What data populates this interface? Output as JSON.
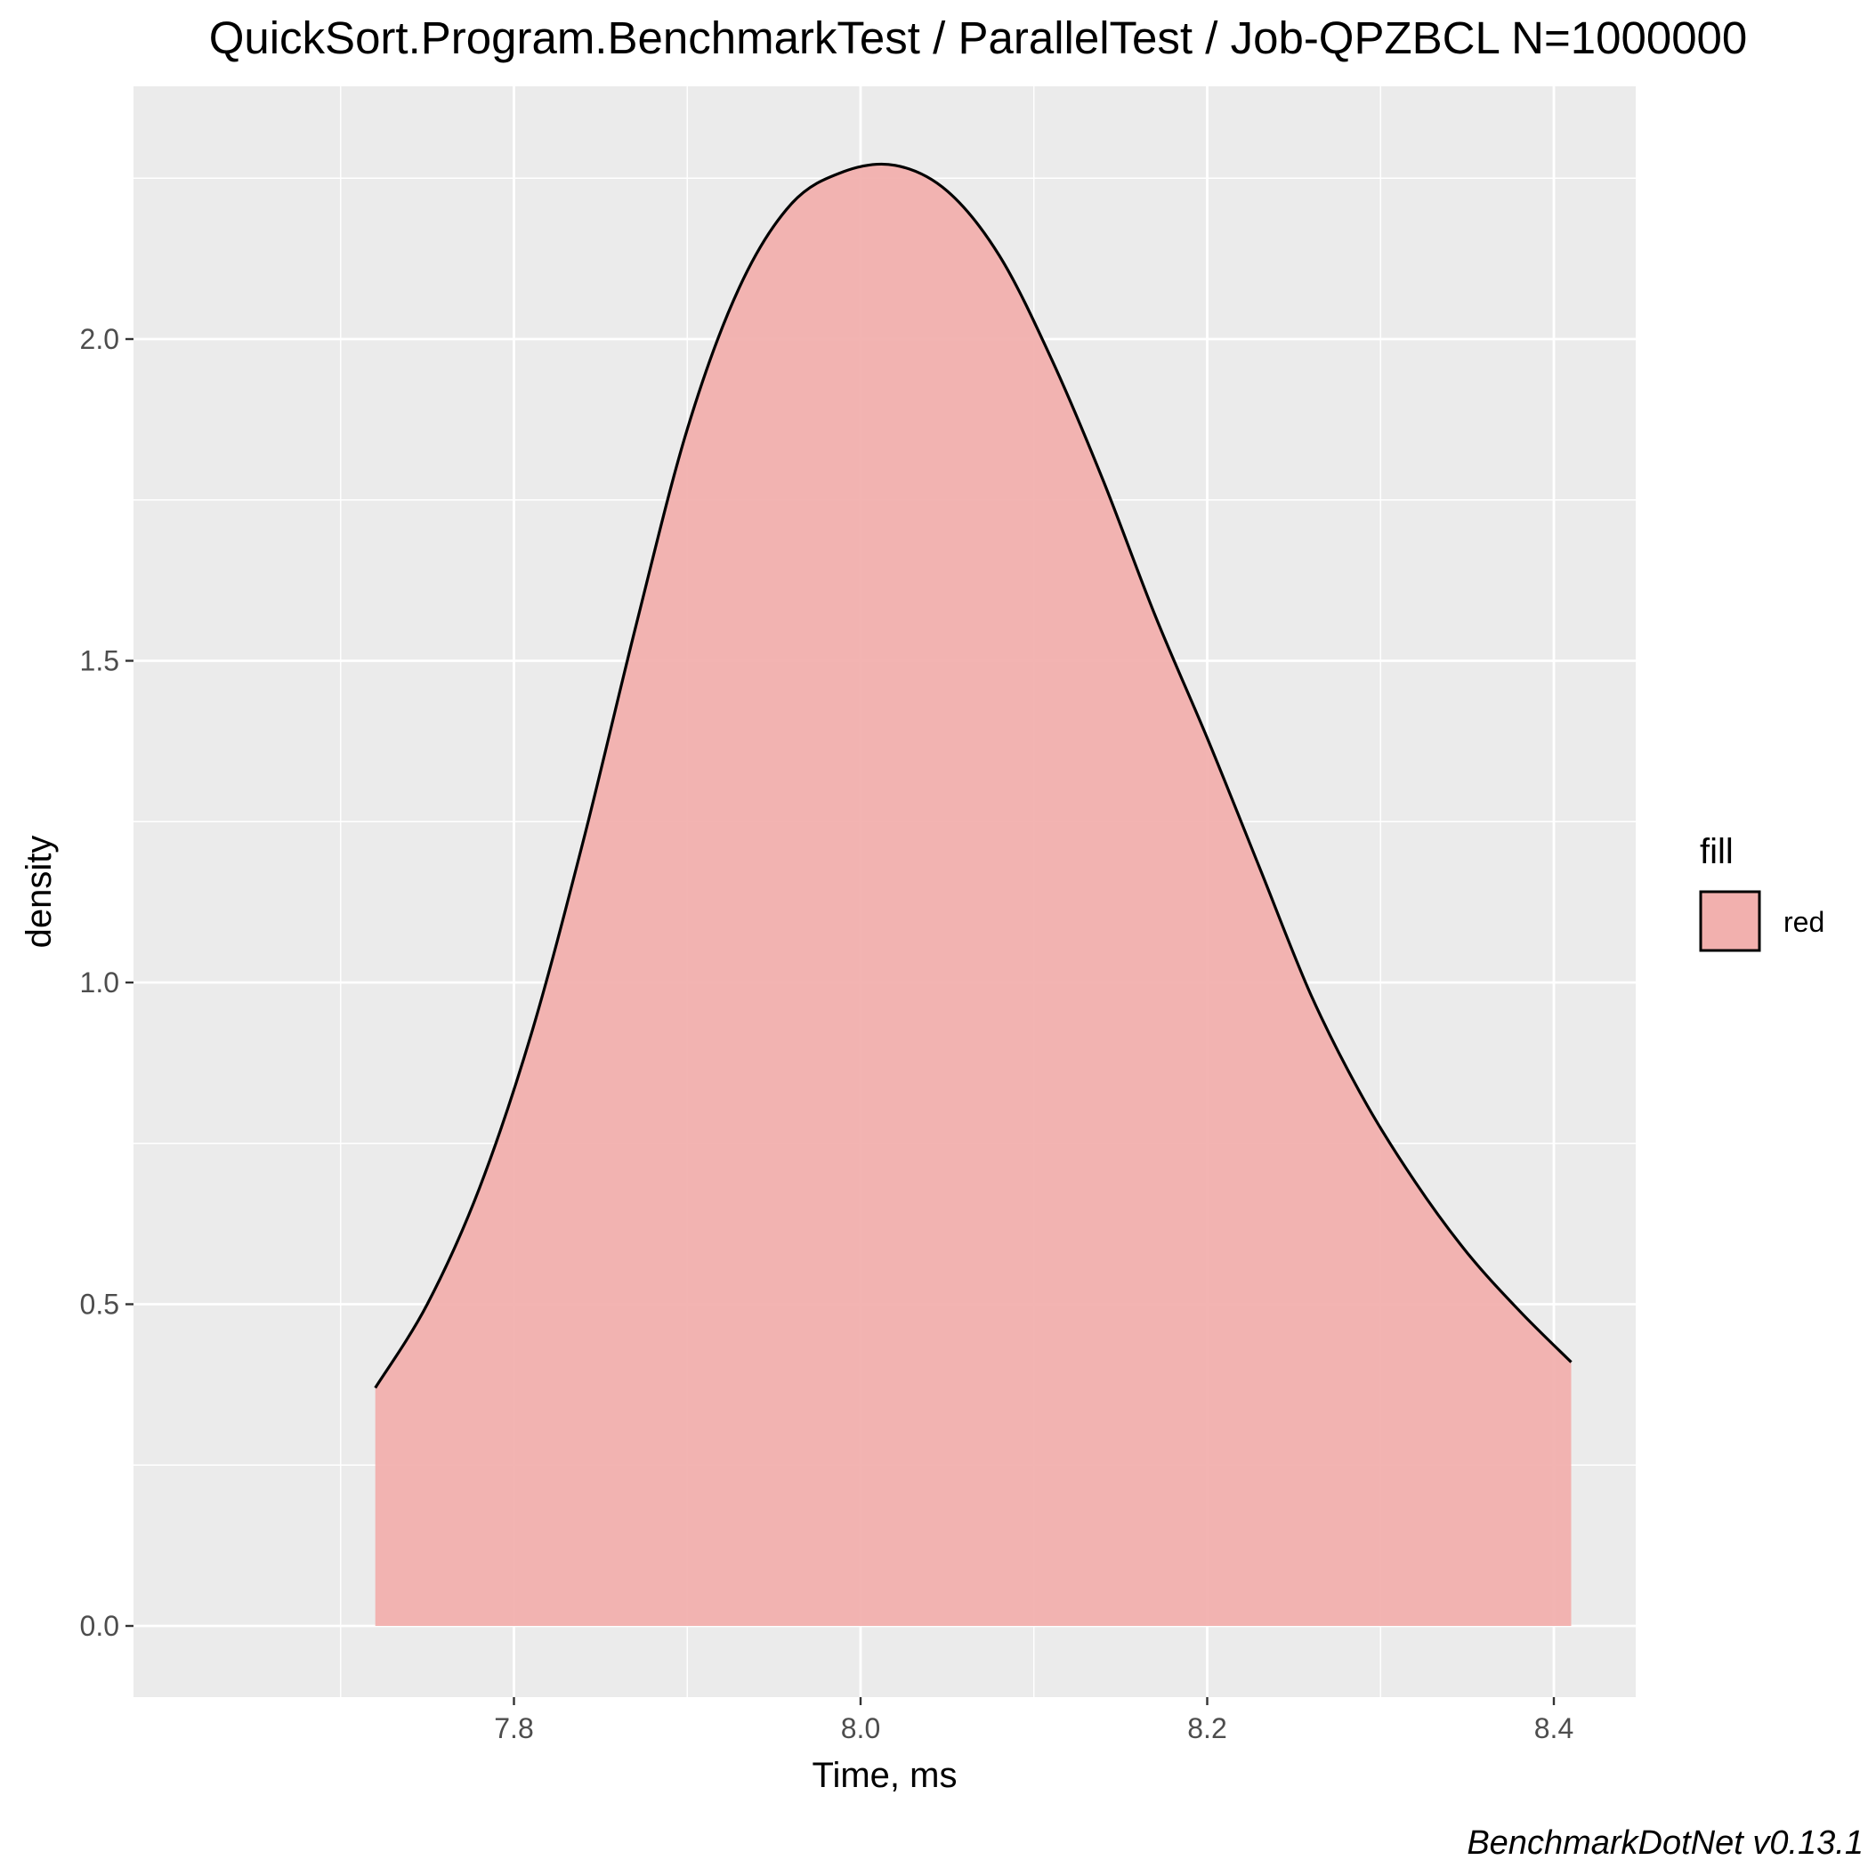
{
  "chart_data": {
    "type": "area",
    "title": "QuickSort.Program.BenchmarkTest / ParallelTest / Job-QPZBCL N=1000000",
    "xlabel": "Time, ms",
    "ylabel": "density",
    "xlim": [
      7.72,
      8.41
    ],
    "ylim": [
      0.0,
      2.27
    ],
    "x_ticks": [
      7.8,
      8.0,
      8.2,
      8.4
    ],
    "x_tick_labels": [
      "7.8",
      "8.0",
      "8.2",
      "8.4"
    ],
    "y_ticks": [
      0.0,
      0.5,
      1.0,
      1.5,
      2.0
    ],
    "y_tick_labels": [
      "0.0",
      "0.5",
      "1.0",
      "1.5",
      "2.0"
    ],
    "grid": true,
    "legend": {
      "title": "fill",
      "entries": [
        "red"
      ],
      "position": "right"
    },
    "series": [
      {
        "name": "red",
        "fill_color": "#f2b0ae",
        "line_color": "#000000",
        "x": [
          7.72,
          7.75,
          7.78,
          7.81,
          7.84,
          7.87,
          7.9,
          7.93,
          7.96,
          7.99,
          8.02,
          8.05,
          8.08,
          8.11,
          8.14,
          8.17,
          8.2,
          8.23,
          8.26,
          8.29,
          8.32,
          8.35,
          8.38,
          8.41
        ],
        "y": [
          0.37,
          0.5,
          0.68,
          0.92,
          1.22,
          1.55,
          1.86,
          2.08,
          2.21,
          2.26,
          2.27,
          2.23,
          2.13,
          1.97,
          1.78,
          1.57,
          1.38,
          1.18,
          0.98,
          0.82,
          0.69,
          0.58,
          0.49,
          0.41
        ]
      }
    ],
    "caption": "BenchmarkDotNet v0.13.1"
  }
}
